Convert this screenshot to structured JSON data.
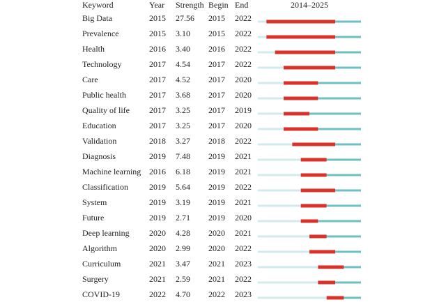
{
  "header": [
    "Keyword",
    "Year",
    "Strength",
    "Begin",
    "End",
    "2014–2025"
  ],
  "timeline": {
    "start": 2014,
    "end": 2025
  },
  "rows": [
    [
      "Big Data",
      2015,
      "27.56",
      2015,
      2022
    ],
    [
      "Prevalence",
      2015,
      "3.10",
      2015,
      2022
    ],
    [
      "Health",
      2016,
      "3.40",
      2016,
      2022
    ],
    [
      "Technology",
      2017,
      "4.54",
      2017,
      2022
    ],
    [
      "Care",
      2017,
      "4.52",
      2017,
      2020
    ],
    [
      "Public health",
      2017,
      "3.68",
      2017,
      2020
    ],
    [
      "Quality of life",
      2017,
      "3.25",
      2017,
      2019
    ],
    [
      "Education",
      2017,
      "3.25",
      2017,
      2020
    ],
    [
      "Validation",
      2018,
      "3.27",
      2018,
      2022
    ],
    [
      "Diagnosis",
      2019,
      "7.48",
      2019,
      2021
    ],
    [
      "Machine learning",
      2016,
      "6.18",
      2019,
      2021
    ],
    [
      "Classification",
      2019,
      "5.64",
      2019,
      2022
    ],
    [
      "System",
      2019,
      "3.19",
      2019,
      2021
    ],
    [
      "Future",
      2019,
      "2.71",
      2019,
      2020
    ],
    [
      "Deep learning",
      2020,
      "4.28",
      2020,
      2021
    ],
    [
      "Algorithm",
      2020,
      "2.99",
      2020,
      2022
    ],
    [
      "Curriculum",
      2021,
      "3.47",
      2021,
      2023
    ],
    [
      "Surgery",
      2021,
      "2.59",
      2021,
      2022
    ],
    [
      "COVID-19",
      2022,
      "4.70",
      2022,
      2023
    ]
  ]
}
